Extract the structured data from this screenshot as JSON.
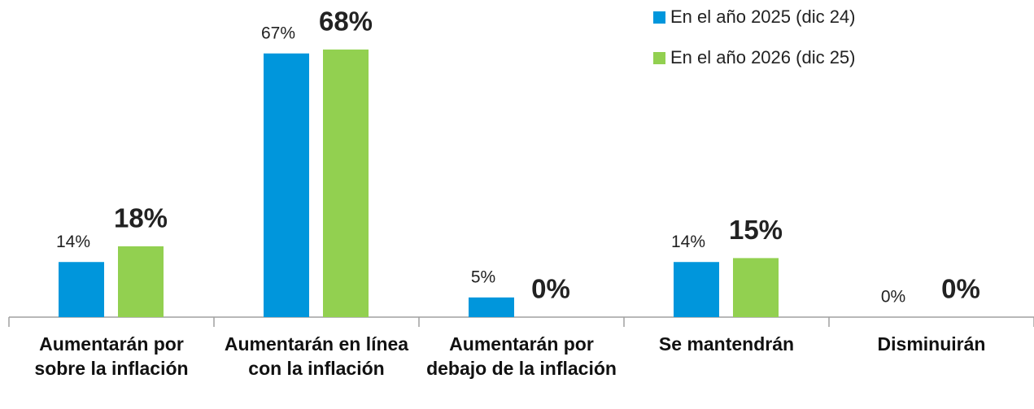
{
  "chart_data": {
    "type": "bar",
    "categories": [
      "Aumentarán por sobre la inflación",
      "Aumentarán en línea con la inflación",
      "Aumentarán por debajo de la inflación",
      "Se mantendrán",
      "Disminuirán"
    ],
    "series": [
      {
        "name": "En el año 2025 (dic 24)",
        "color": "#0096dc",
        "values": [
          14,
          67,
          5,
          14,
          0
        ],
        "value_labels": [
          "14%",
          "67%",
          "5%",
          "14%",
          "0%"
        ]
      },
      {
        "name": "En el año 2026 (dic 25)",
        "color": "#92d050",
        "values": [
          18,
          68,
          0,
          15,
          0
        ],
        "value_labels": [
          "18%",
          "68%",
          "0%",
          "15%",
          "0%"
        ]
      }
    ]
  }
}
